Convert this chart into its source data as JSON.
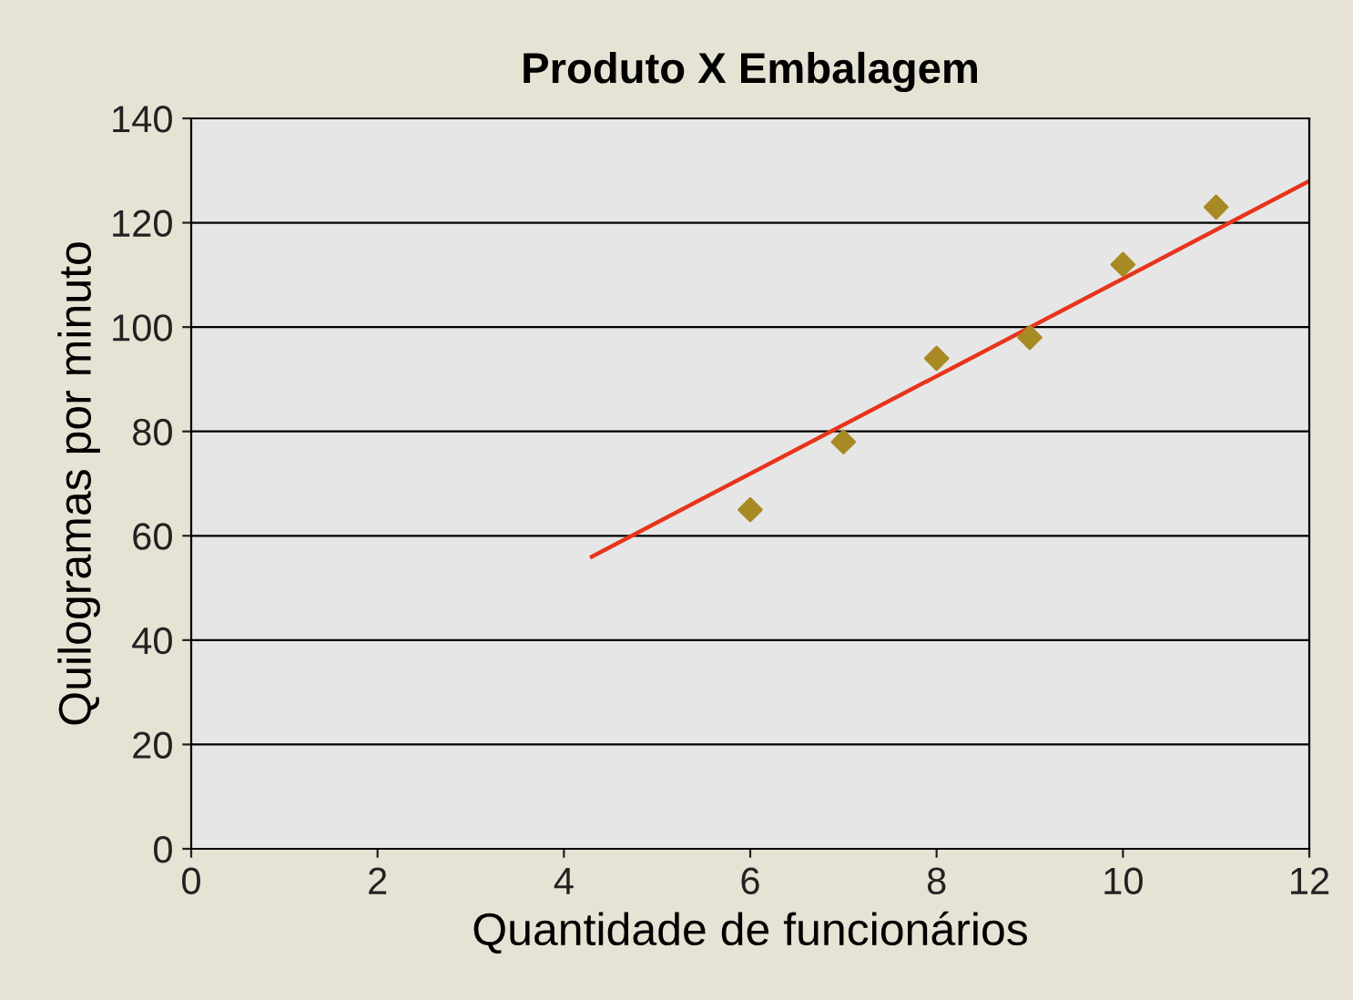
{
  "chart_data": {
    "type": "scatter",
    "title": "Produto X Embalagem",
    "xlabel": "Quantidade de funcionários",
    "ylabel": "Quilogramas por minuto",
    "series": [
      {
        "color": "#a88a24",
        "x": [
          6,
          7,
          8,
          9,
          10,
          11
        ],
        "values": [
          65,
          78,
          94,
          98,
          112,
          123
        ],
        "marker": "diamond"
      },
      {
        "type": "line",
        "color": "#e8341c",
        "x": [
          4.3,
          12
        ],
        "values": [
          56,
          128
        ],
        "marker": "none"
      }
    ],
    "xlim": [
      0,
      12
    ],
    "xticks": [
      0,
      2,
      4,
      6,
      8,
      10,
      12
    ],
    "ylim": [
      0,
      140
    ],
    "yticks": [
      0,
      20,
      40,
      60,
      80,
      100,
      120,
      140
    ],
    "grid": "y"
  }
}
